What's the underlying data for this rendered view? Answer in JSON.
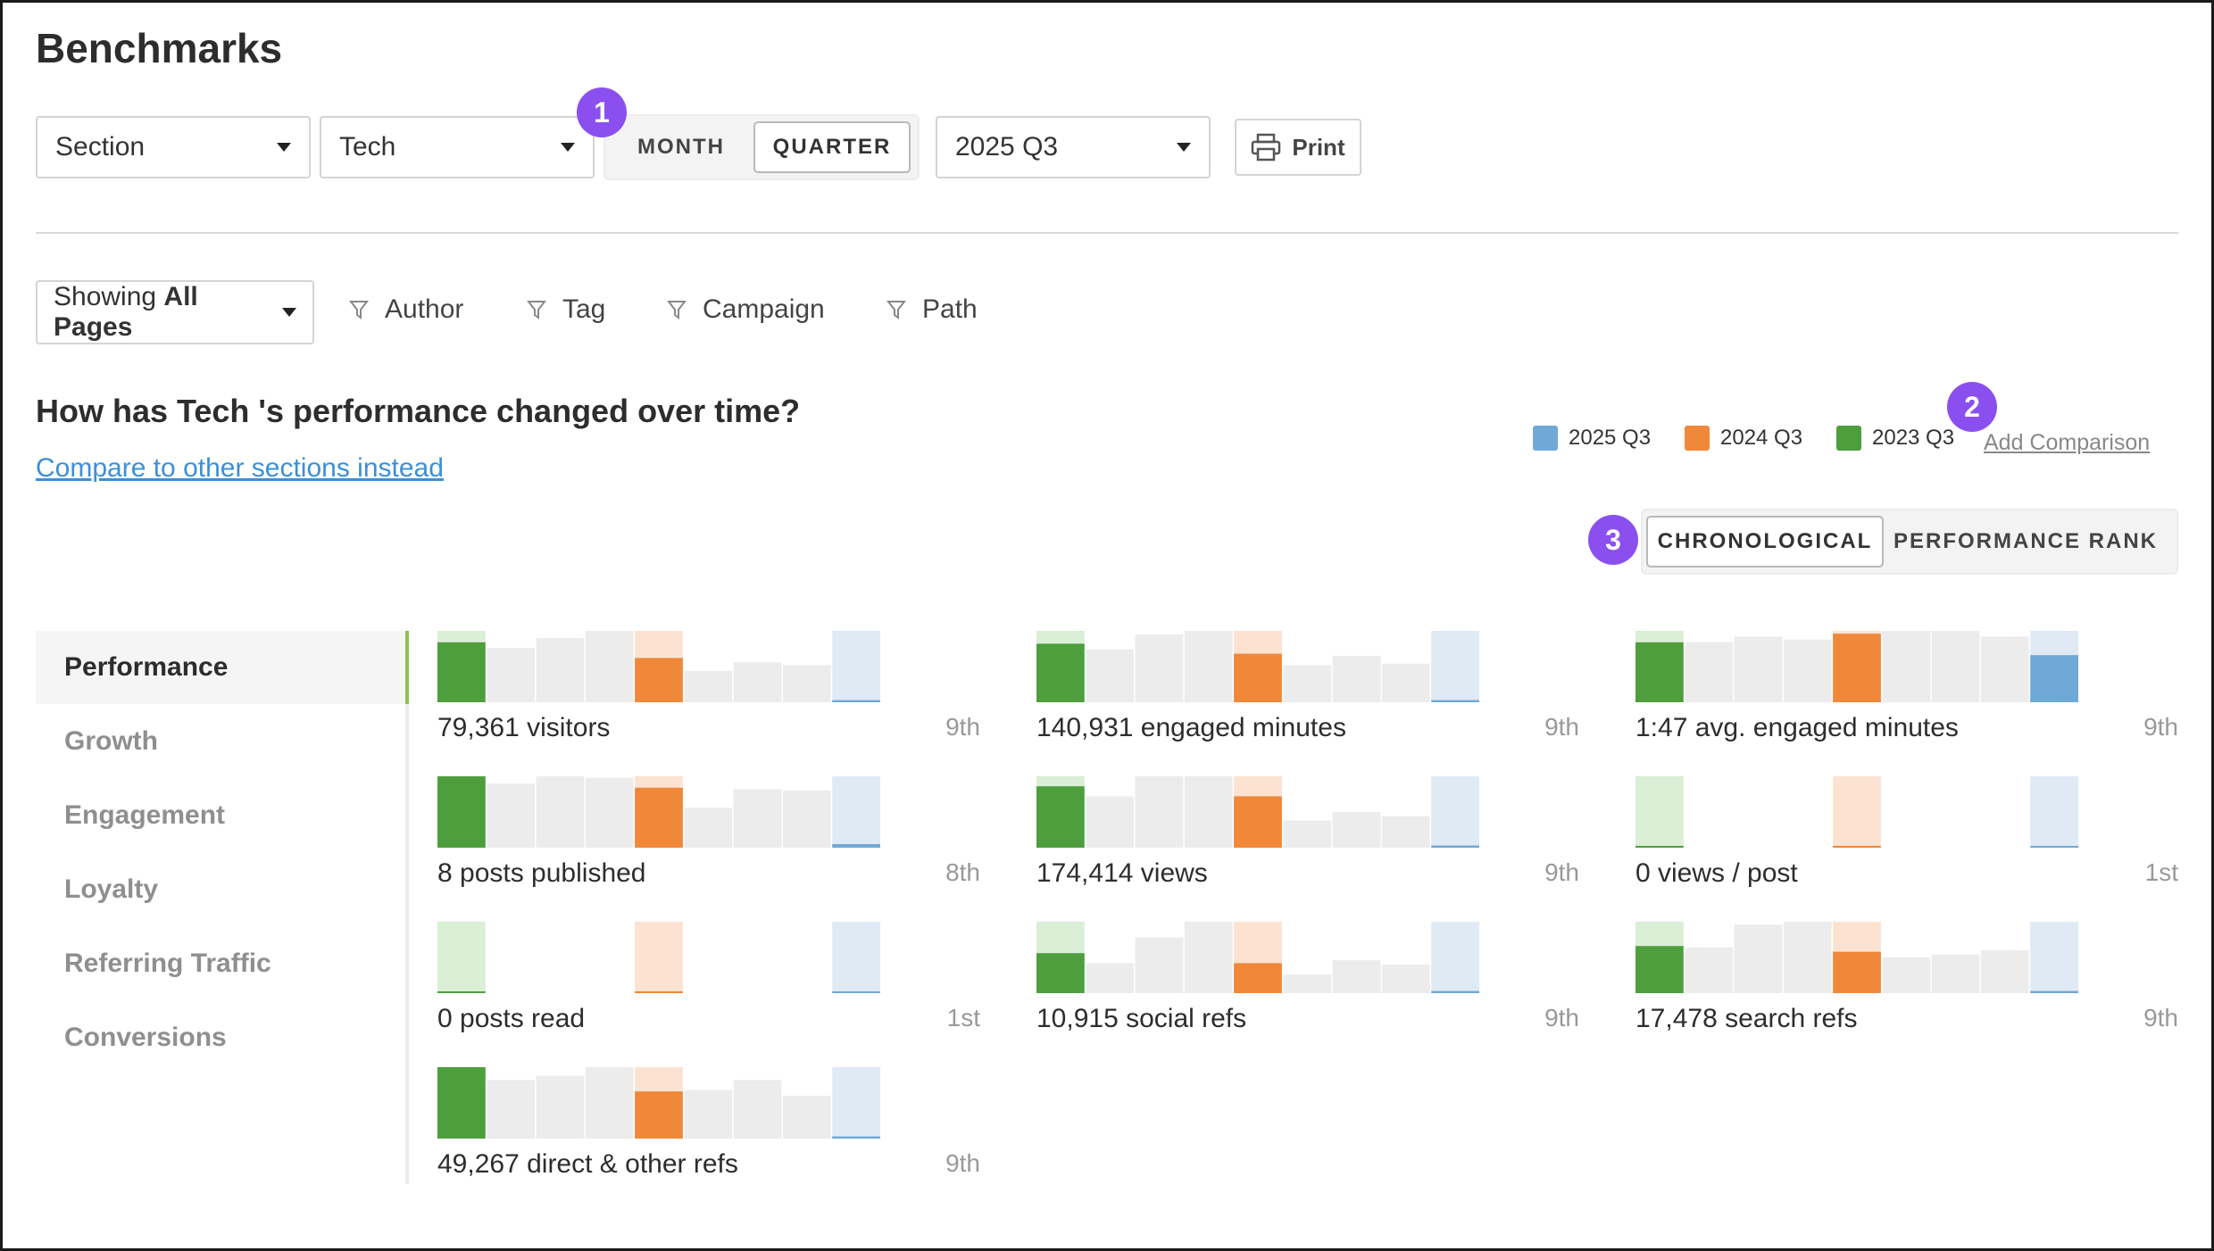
{
  "title": "Benchmarks",
  "controls": {
    "scope_select": "Section",
    "section_select": "Tech",
    "period_toggle": [
      {
        "label": "MONTH",
        "active": false
      },
      {
        "label": "QUARTER",
        "active": true
      }
    ],
    "period_select": "2025 Q3",
    "print_label": "Print"
  },
  "badges": [
    "1",
    "2",
    "3"
  ],
  "filters": {
    "showing_prefix": "Showing",
    "showing_value": "All Pages",
    "items": [
      "Author",
      "Tag",
      "Campaign",
      "Path"
    ]
  },
  "question": "How has Tech 's performance changed over time?",
  "compare_link": "Compare to other sections instead",
  "legend": [
    {
      "label": "2025 Q3",
      "color": "#6fa9d6"
    },
    {
      "label": "2024 Q3",
      "color": "#f0883a"
    },
    {
      "label": "2023 Q3",
      "color": "#4e9e3e"
    }
  ],
  "add_comparison": "Add Comparison",
  "sort_toggle": [
    {
      "label": "CHRONOLOGICAL",
      "active": true
    },
    {
      "label": "PERFORMANCE RANK",
      "active": false
    }
  ],
  "sidebar": [
    {
      "label": "Performance",
      "active": true
    },
    {
      "label": "Growth",
      "active": false
    },
    {
      "label": "Engagement",
      "active": false
    },
    {
      "label": "Loyalty",
      "active": false
    },
    {
      "label": "Referring Traffic",
      "active": false
    },
    {
      "label": "Conversions",
      "active": false
    }
  ],
  "chart_data": [
    {
      "type": "bar",
      "label": "79,361 visitors",
      "rank": "9th",
      "values": [
        0.84,
        0.76,
        0.9,
        1.0,
        0.62,
        0.44,
        0.56,
        0.52,
        0.03
      ],
      "ylim": [
        0,
        1
      ]
    },
    {
      "type": "bar",
      "label": "140,931 engaged minutes",
      "rank": "9th",
      "values": [
        0.82,
        0.74,
        0.95,
        1.0,
        0.68,
        0.52,
        0.65,
        0.54,
        0.03
      ],
      "ylim": [
        0,
        1
      ]
    },
    {
      "type": "bar",
      "label": "1:47 avg. engaged minutes",
      "rank": "9th",
      "values": [
        0.84,
        0.84,
        0.92,
        0.88,
        0.96,
        1.0,
        1.0,
        0.92,
        0.66
      ],
      "ylim": [
        0,
        1
      ]
    },
    {
      "type": "bar",
      "label": "8 posts published",
      "rank": "8th",
      "values": [
        1.0,
        0.9,
        1.0,
        0.98,
        0.84,
        0.56,
        0.82,
        0.8,
        0.05
      ],
      "ylim": [
        0,
        1
      ]
    },
    {
      "type": "bar",
      "label": "174,414 views",
      "rank": "9th",
      "values": [
        0.86,
        0.72,
        1.0,
        1.0,
        0.72,
        0.38,
        0.5,
        0.44,
        0.03
      ],
      "ylim": [
        0,
        1
      ]
    },
    {
      "type": "bar",
      "label": "0 views / post",
      "rank": "1st",
      "values": [
        0.02,
        0,
        0,
        0,
        0.02,
        0,
        0,
        0,
        0.02
      ],
      "ylim": [
        0,
        1
      ]
    },
    {
      "type": "bar",
      "label": "0 posts read",
      "rank": "1st",
      "values": [
        0.02,
        0,
        0,
        0,
        0.02,
        0,
        0,
        0,
        0.02
      ],
      "ylim": [
        0,
        1
      ]
    },
    {
      "type": "bar",
      "label": "10,915 social refs",
      "rank": "9th",
      "values": [
        0.56,
        0.42,
        0.78,
        1.0,
        0.42,
        0.26,
        0.46,
        0.4,
        0.03
      ],
      "ylim": [
        0,
        1
      ]
    },
    {
      "type": "bar",
      "label": "17,478 search refs",
      "rank": "9th",
      "values": [
        0.66,
        0.64,
        0.96,
        1.0,
        0.58,
        0.5,
        0.54,
        0.6,
        0.03
      ],
      "ylim": [
        0,
        1
      ]
    },
    {
      "type": "bar",
      "label": "49,267 direct & other refs",
      "rank": "9th",
      "values": [
        1.0,
        0.82,
        0.88,
        1.0,
        0.66,
        0.68,
        0.82,
        0.6,
        0.03
      ],
      "ylim": [
        0,
        1
      ]
    }
  ]
}
